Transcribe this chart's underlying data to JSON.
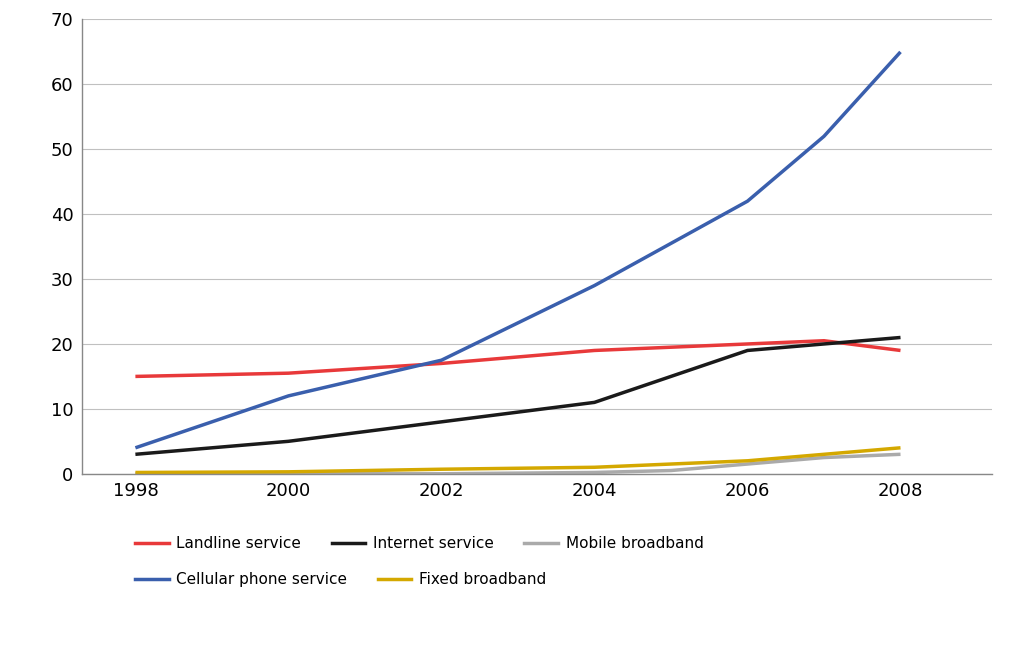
{
  "series": {
    "Landline service": {
      "x": [
        1998,
        2000,
        2002,
        2004,
        2006,
        2007,
        2008
      ],
      "y": [
        15.0,
        15.5,
        17.0,
        19.0,
        20.0,
        20.5,
        19.0
      ],
      "color": "#e8393a",
      "linewidth": 2.5
    },
    "Internet service": {
      "x": [
        1998,
        2000,
        2002,
        2004,
        2006,
        2007,
        2008
      ],
      "y": [
        3.0,
        5.0,
        8.0,
        11.0,
        19.0,
        20.0,
        21.0
      ],
      "color": "#1a1a1a",
      "linewidth": 2.5
    },
    "Mobile broadband": {
      "x": [
        1998,
        2000,
        2002,
        2004,
        2005,
        2006,
        2007,
        2008
      ],
      "y": [
        0.0,
        0.0,
        0.0,
        0.2,
        0.5,
        1.5,
        2.5,
        3.0
      ],
      "color": "#aaaaaa",
      "linewidth": 2.5
    },
    "Cellular phone service": {
      "x": [
        1998,
        2000,
        2002,
        2004,
        2006,
        2007,
        2008
      ],
      "y": [
        4.0,
        12.0,
        17.5,
        29.0,
        42.0,
        52.0,
        65.0
      ],
      "color": "#3a5fad",
      "linewidth": 2.5
    },
    "Fixed broadband": {
      "x": [
        1998,
        2000,
        2002,
        2004,
        2005,
        2006,
        2007,
        2008
      ],
      "y": [
        0.2,
        0.3,
        0.7,
        1.0,
        1.5,
        2.0,
        3.0,
        4.0
      ],
      "color": "#d4a800",
      "linewidth": 2.5
    }
  },
  "legend_row1": [
    "Landline service",
    "Internet service",
    "Mobile broadband"
  ],
  "legend_row2": [
    "Cellular phone service",
    "Fixed broadband"
  ],
  "legend_order": [
    "Landline service",
    "Internet service",
    "Mobile broadband",
    "Cellular phone service",
    "Fixed broadband"
  ],
  "ylim": [
    0,
    70
  ],
  "yticks": [
    0,
    10,
    20,
    30,
    40,
    50,
    60,
    70
  ],
  "xlim": [
    1997.3,
    2009.2
  ],
  "xticks": [
    1998,
    2000,
    2002,
    2004,
    2006,
    2008
  ],
  "grid_color": "#c0c0c0",
  "bg_color": "#ffffff",
  "spine_color": "#888888",
  "tick_fontsize": 13,
  "legend_fontsize": 11
}
